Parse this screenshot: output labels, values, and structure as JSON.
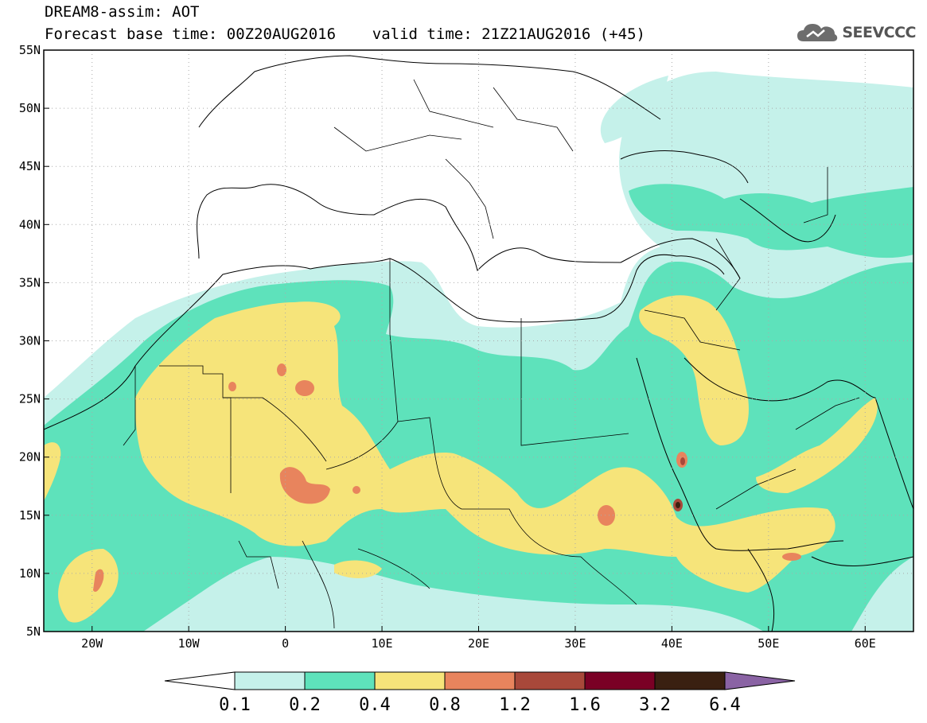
{
  "header": {
    "line1": "DREAM8-assim: AOT",
    "line2": "Forecast base time: 00Z20AUG2016    valid time: 21Z21AUG2016 (+45)"
  },
  "logo": {
    "text": "SEEVCCC",
    "icon": "cloud-icon"
  },
  "map": {
    "lon_range": [
      -25,
      65
    ],
    "lat_range": [
      5,
      55
    ],
    "lat_ticks": [
      {
        "value": 55,
        "label": "55N"
      },
      {
        "value": 50,
        "label": "50N"
      },
      {
        "value": 45,
        "label": "45N"
      },
      {
        "value": 40,
        "label": "40N"
      },
      {
        "value": 35,
        "label": "35N"
      },
      {
        "value": 30,
        "label": "30N"
      },
      {
        "value": 25,
        "label": "25N"
      },
      {
        "value": 20,
        "label": "20N"
      },
      {
        "value": 15,
        "label": "15N"
      },
      {
        "value": 10,
        "label": "10N"
      },
      {
        "value": 5,
        "label": "5N"
      }
    ],
    "lon_ticks": [
      {
        "value": -20,
        "label": "20W"
      },
      {
        "value": -10,
        "label": "10W"
      },
      {
        "value": 0,
        "label": "0"
      },
      {
        "value": 10,
        "label": "10E"
      },
      {
        "value": 20,
        "label": "20E"
      },
      {
        "value": 30,
        "label": "30E"
      },
      {
        "value": 40,
        "label": "40E"
      },
      {
        "value": 50,
        "label": "50E"
      },
      {
        "value": 60,
        "label": "60E"
      }
    ],
    "grid": true,
    "grid_style": "dotted"
  },
  "colorbar": {
    "boundaries": [
      "0.1",
      "0.2",
      "0.4",
      "0.8",
      "1.2",
      "1.6",
      "3.2",
      "6.4"
    ],
    "colors": [
      "#ffffff",
      "#c5f1ea",
      "#5ee2bb",
      "#f6e47a",
      "#e8845d",
      "#a8483a",
      "#7a0025",
      "#3a2011",
      "#8a63a4"
    ],
    "extend": "both"
  },
  "layers": {
    "level1_color": "#c5f1ea",
    "level2_color": "#5ee2bb",
    "level3_color": "#f6e47a",
    "level4_color": "#e8845d",
    "level5_color": "#a8483a",
    "level6_color": "#3a2011"
  }
}
